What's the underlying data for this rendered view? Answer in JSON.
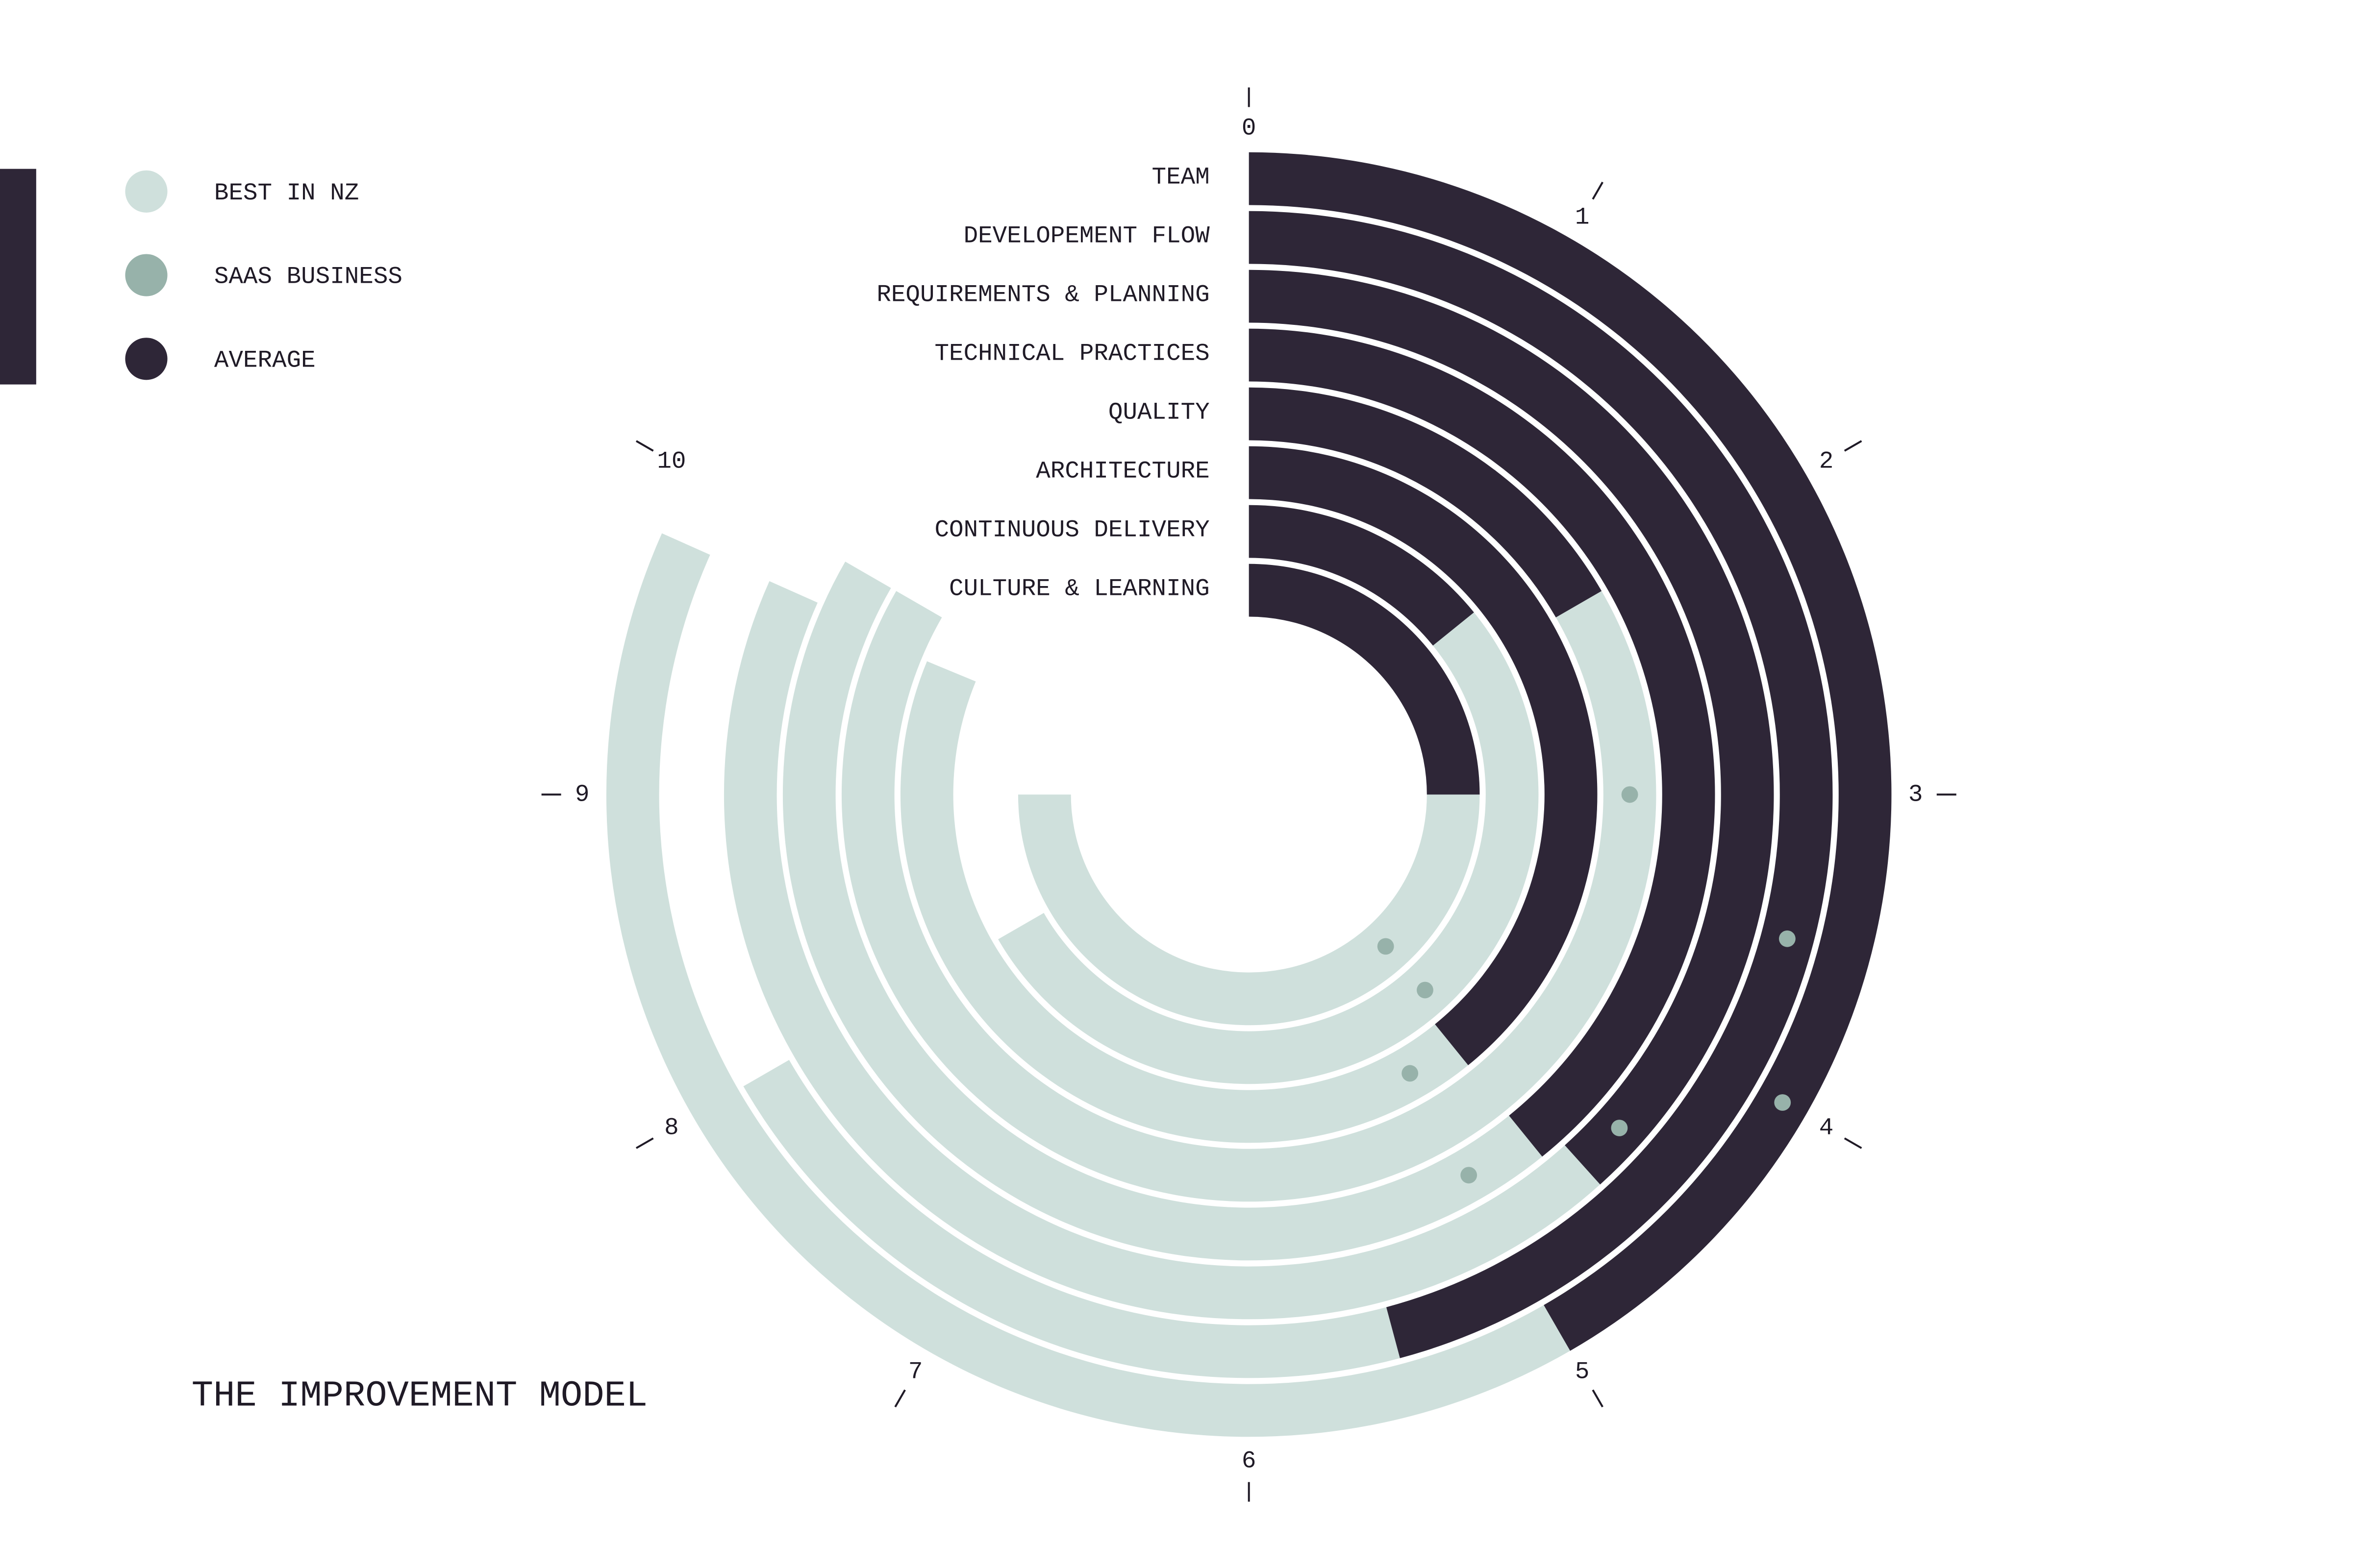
{
  "chart_data": {
    "type": "radial_bar",
    "title": "THE IMPROVEMENT MODEL",
    "categories": [
      "TEAM",
      "DEVELOPEMENT FLOW",
      "REQUIREMENTS & PLANNING",
      "TECHNICAL PRACTICES",
      "QUALITY",
      "ARCHITECTURE",
      "CONTINUOUS DELIVERY",
      "CULTURE & LEARNING"
    ],
    "series": [
      {
        "name": "BEST IN NZ",
        "color": "#cfe0dc",
        "marker": "bar",
        "values": [
          9.8,
          8.0,
          9.8,
          10.0,
          10.0,
          9.75,
          8.0,
          9.0
        ]
      },
      {
        "name": "SAAS BUSINESS",
        "color": "#97b2aa",
        "marker": "dot",
        "values": [
          4.0,
          3.5,
          4.4,
          5.0,
          3.0,
          5.0,
          4.6,
          4.6
        ]
      },
      {
        "name": "AVERAGE",
        "color": "#2e2637",
        "marker": "bar",
        "values": [
          5.0,
          5.5,
          4.6,
          4.7,
          2.0,
          4.7,
          1.7,
          3.0
        ]
      }
    ],
    "xlim": [
      0,
      12
    ],
    "xticks": [
      0,
      1,
      2,
      3,
      4,
      5,
      6,
      7,
      8,
      9,
      10
    ]
  }
}
